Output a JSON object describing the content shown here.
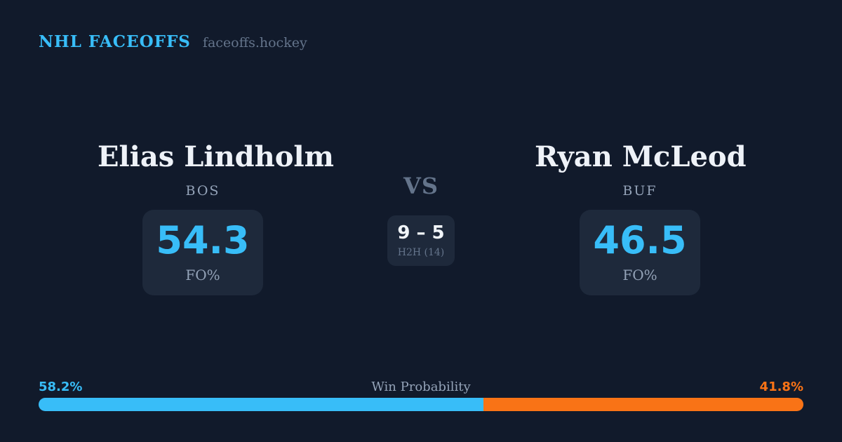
{
  "header": {
    "brand": "NHL FACEOFFS",
    "site": "faceoffs.hockey"
  },
  "matchup": {
    "vs_label": "VS",
    "h2h": {
      "score": "9 – 5",
      "label": "H2H (14)"
    },
    "players": [
      {
        "name": "Elias Lindholm",
        "team": "BOS",
        "fo_pct": "54.3",
        "fo_label": "FO%"
      },
      {
        "name": "Ryan McLeod",
        "team": "BUF",
        "fo_pct": "46.5",
        "fo_label": "FO%"
      }
    ]
  },
  "win_probability": {
    "label": "Win Probability",
    "left_label": "58.2%",
    "right_label": "41.8%",
    "left_value": 58.2,
    "right_value": 41.8
  },
  "colors": {
    "background": "#111a2b",
    "card": "#1e293b",
    "accent_blue": "#38bdf8",
    "accent_orange": "#f97316",
    "text_white": "#eef2f8",
    "text_gray": "#94a3b8",
    "text_dim": "#64748b"
  },
  "chart_data": {
    "type": "bar",
    "subtype": "stacked-horizontal-single-row",
    "title": "Win Probability",
    "categories": [
      "Elias Lindholm (BOS)",
      "Ryan McLeod (BUF)"
    ],
    "values": [
      58.2,
      41.8
    ],
    "unit": "%",
    "xlim": [
      0,
      100
    ],
    "colors": [
      "#38bdf8",
      "#f97316"
    ],
    "legend": false,
    "grid": false,
    "related_stats": {
      "faceoff_pct": {
        "Elias Lindholm": 54.3,
        "Ryan McLeod": 46.5
      },
      "head_to_head": {
        "score": "9 – 5",
        "total_faceoffs": 14
      }
    }
  }
}
